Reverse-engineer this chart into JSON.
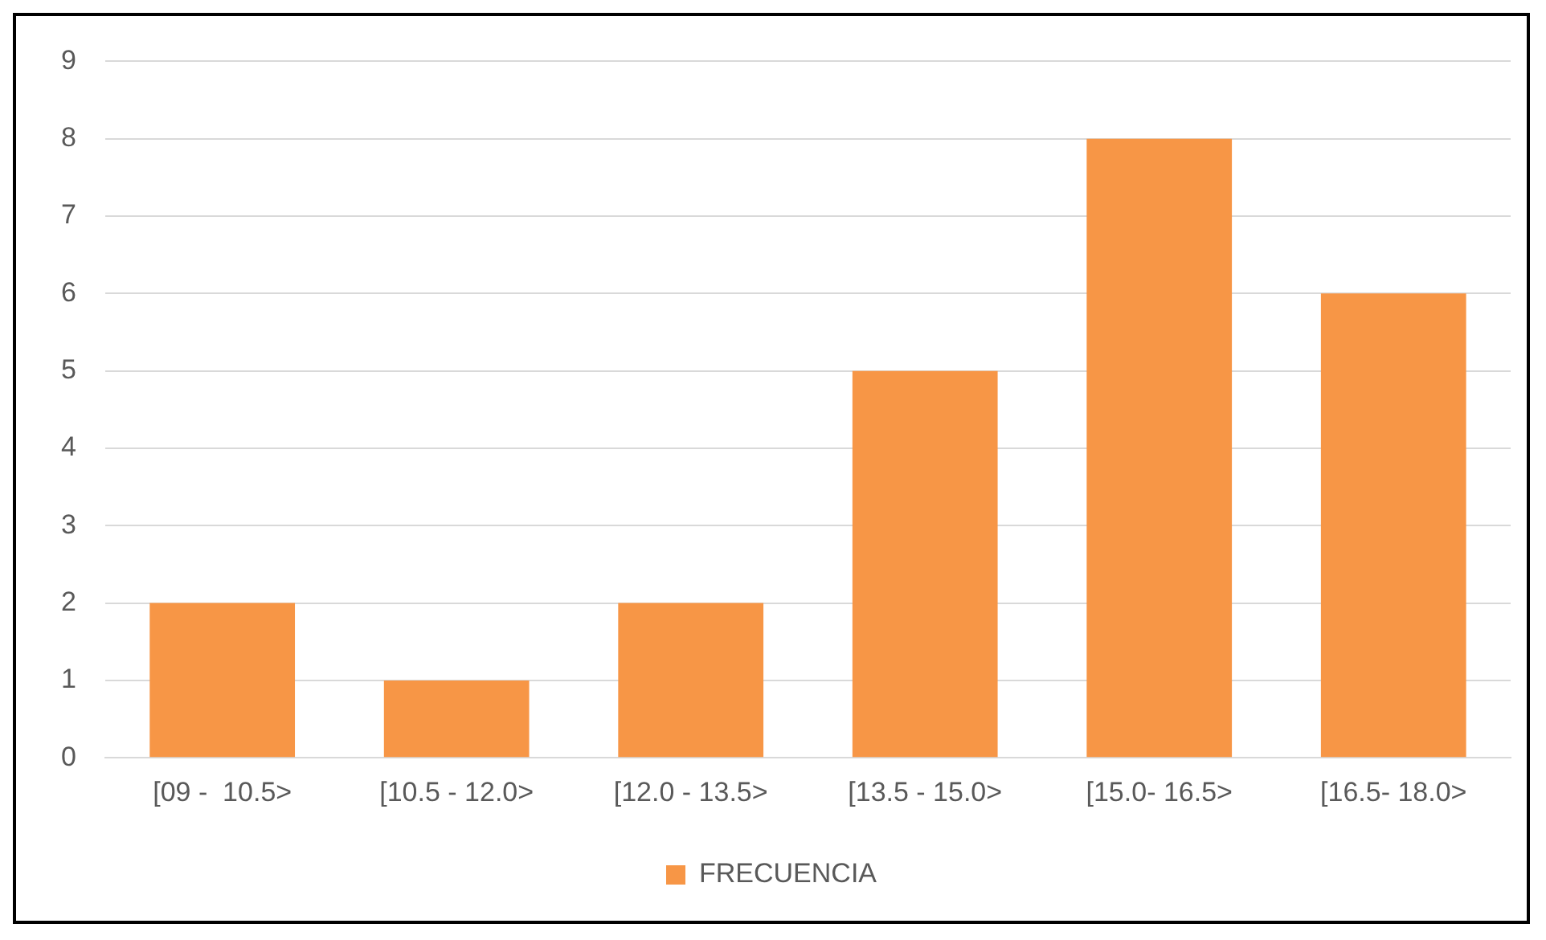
{
  "chart_data": {
    "type": "bar",
    "categories": [
      "[09 -  10.5>",
      "[10.5 - 12.0>",
      "[12.0 - 13.5>",
      "[13.5 - 15.0>",
      "[15.0- 16.5>",
      "[16.5- 18.0>"
    ],
    "series": [
      {
        "name": "FRECUENCIA",
        "color": "#f79646",
        "values": [
          2,
          1,
          2,
          5,
          8,
          6
        ]
      }
    ],
    "ylim": [
      0,
      9
    ],
    "yticks": [
      0,
      1,
      2,
      3,
      4,
      5,
      6,
      7,
      8,
      9
    ],
    "grid": "y",
    "legend": "bottom"
  }
}
